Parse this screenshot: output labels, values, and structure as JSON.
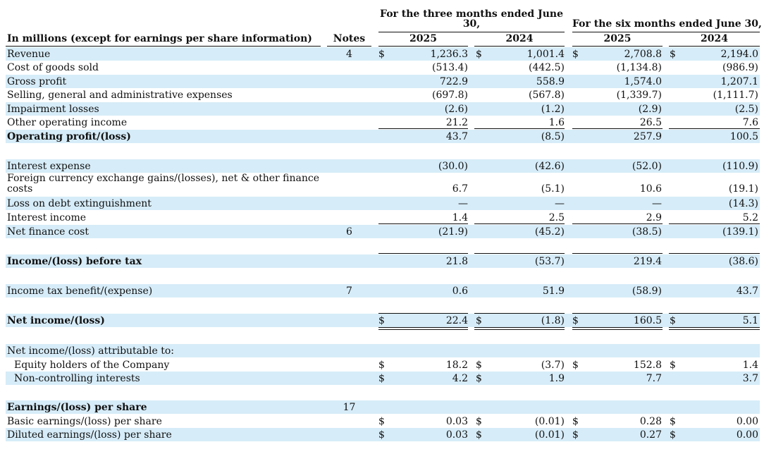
{
  "header": {
    "label_col": "In millions (except for earnings per share information)",
    "notes_col": "Notes",
    "group_three": "For the three months ended June 30,",
    "group_six": "For the six months ended June 30,",
    "years": [
      "2025",
      "2024",
      "2025",
      "2024"
    ]
  },
  "rows": [
    {
      "label": "Revenue",
      "note": "4",
      "vals": [
        "1,236.3",
        "1,001.4",
        "2,708.8",
        "2,194.0"
      ],
      "dollar": [
        true,
        true,
        true,
        true
      ]
    },
    {
      "label": "Cost of goods sold",
      "vals": [
        "(513.4)",
        "(442.5)",
        "(1,134.8)",
        "(986.9)"
      ]
    },
    {
      "label": "Gross profit",
      "vals": [
        "722.9",
        "558.9",
        "1,574.0",
        "1,207.1"
      ]
    },
    {
      "label": "Selling, general and administrative expenses",
      "vals": [
        "(697.8)",
        "(567.8)",
        "(1,339.7)",
        "(1,111.7)"
      ]
    },
    {
      "label": "Impairment losses",
      "vals": [
        "(2.6)",
        "(1.2)",
        "(2.9)",
        "(2.5)"
      ]
    },
    {
      "label": "Other operating income",
      "vals": [
        "21.2",
        "1.6",
        "26.5",
        "7.6"
      ]
    },
    {
      "label": "Operating profit/(loss)",
      "bold": true,
      "vals": [
        "43.7",
        "(8.5)",
        "257.9",
        "100.5"
      ]
    },
    {
      "label": "Interest expense",
      "vals": [
        "(30.0)",
        "(42.6)",
        "(52.0)",
        "(110.9)"
      ]
    },
    {
      "label": "Foreign currency exchange gains/(losses), net & other finance",
      "label2": "costs",
      "vals": [
        "6.7",
        "(5.1)",
        "10.6",
        "(19.1)"
      ]
    },
    {
      "label": "Loss on debt extinguishment",
      "vals": [
        "—",
        "—",
        "—",
        "(14.3)"
      ]
    },
    {
      "label": "Interest income",
      "vals": [
        "1.4",
        "2.5",
        "2.9",
        "5.2"
      ]
    },
    {
      "label": "Net finance cost",
      "note": "6",
      "vals": [
        "(21.9)",
        "(45.2)",
        "(38.5)",
        "(139.1)"
      ]
    },
    {
      "label": "Income/(loss) before tax",
      "bold": true,
      "vals": [
        "21.8",
        "(53.7)",
        "219.4",
        "(38.6)"
      ]
    },
    {
      "label": "Income tax benefit/(expense)",
      "note": "7",
      "vals": [
        "0.6",
        "51.9",
        "(58.9)",
        "43.7"
      ]
    },
    {
      "label": "Net income/(loss)",
      "bold": true,
      "vals": [
        "22.4",
        "(1.8)",
        "160.5",
        "5.1"
      ],
      "dollar": [
        true,
        true,
        true,
        true
      ]
    },
    {
      "label": "Net income/(loss) attributable to:"
    },
    {
      "label": "Equity holders of the Company",
      "indent": true,
      "vals": [
        "18.2",
        "(3.7)",
        "152.8",
        "1.4"
      ],
      "dollar": [
        true,
        true,
        true,
        true
      ]
    },
    {
      "label": "Non-controlling interests",
      "indent": true,
      "vals": [
        "4.2",
        "1.9",
        "7.7",
        "3.7"
      ],
      "dollar": [
        true,
        true,
        false,
        false
      ]
    },
    {
      "label": "Earnings/(loss) per share",
      "bold": true,
      "note": "17"
    },
    {
      "label": "Basic earnings/(loss) per share",
      "vals": [
        "0.03",
        "(0.01)",
        "0.28",
        "0.00"
      ],
      "dollar": [
        true,
        true,
        true,
        true
      ]
    },
    {
      "label": "Diluted earnings/(loss) per share",
      "vals": [
        "0.03",
        "(0.01)",
        "0.27",
        "0.00"
      ],
      "dollar": [
        true,
        true,
        true,
        true
      ]
    }
  ],
  "currency_symbol": "$",
  "colors": {
    "band": "#d6ecf8"
  }
}
